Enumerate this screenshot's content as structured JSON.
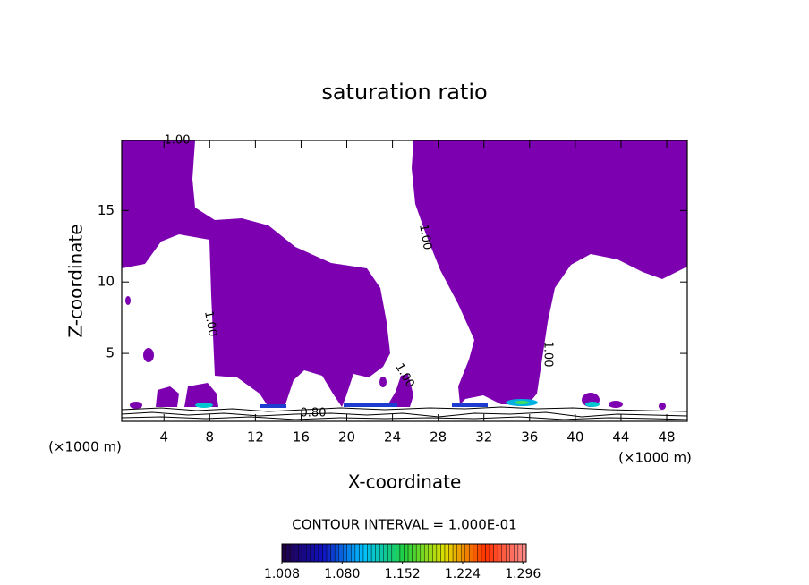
{
  "chart_data": {
    "type": "contour",
    "title": "saturation ratio",
    "x_label": "X-coordinate",
    "y_label": "Z-coordinate",
    "unit_label": "(×1000 m)",
    "xlim": [
      0.3,
      49.8
    ],
    "xticks": [
      4,
      8,
      12,
      16,
      20,
      24,
      28,
      32,
      36,
      40,
      44,
      48
    ],
    "ylim": [
      0.25,
      19.9
    ],
    "yticks": [
      5,
      10,
      15
    ],
    "region_color": "#7c00b0",
    "contour_labels": [
      {
        "value": 1,
        "label": "1.00"
      },
      {
        "value": 1,
        "label": "1.00"
      },
      {
        "value": 1,
        "label": "1.00"
      },
      {
        "value": 1,
        "label": "1.00"
      },
      {
        "value": 1,
        "label": "1.00"
      },
      {
        "value": 0.8,
        "label": "0.80"
      }
    ],
    "contour_interval_label": "CONTOUR INTERVAL = 1.000E-01",
    "colorbar": {
      "lim": [
        1.008,
        1.3
      ],
      "ticks": [
        1.008,
        {
          "value": 1.08,
          "label": "1.080"
        },
        1.152,
        1.224,
        1.296
      ],
      "colormap": [
        "#200040",
        "#1010c0",
        "#00c0ff",
        "#20d040",
        "#e0e000",
        "#ff3000",
        "#ff9090"
      ]
    }
  }
}
